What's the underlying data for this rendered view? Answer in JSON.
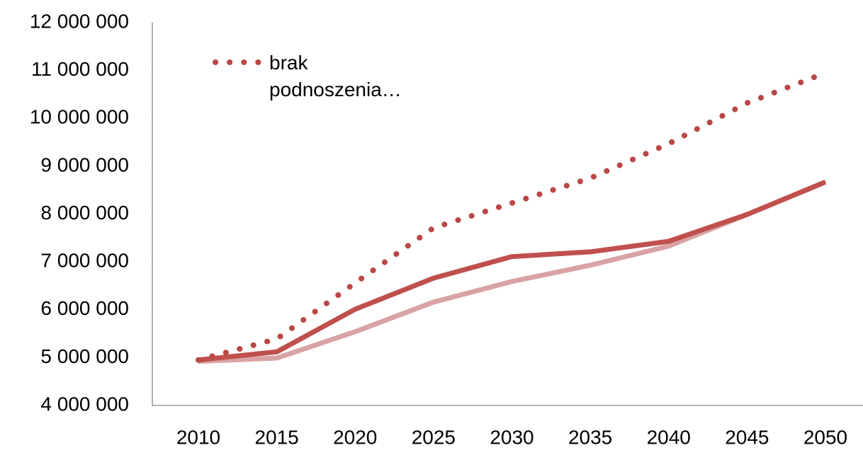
{
  "chart_data": {
    "type": "line",
    "categories": [
      "2010",
      "2015",
      "2020",
      "2025",
      "2030",
      "2035",
      "2040",
      "2045",
      "2050"
    ],
    "series": [
      {
        "name": "brak podnoszenia…",
        "color": "#b94745",
        "style": "dotted",
        "values": [
          4950000,
          5390000,
          6560000,
          7710000,
          8230000,
          8750000,
          9470000,
          10320000,
          10950000
        ]
      },
      {
        "color": "#c0504d",
        "style": "solid",
        "values": [
          4950000,
          5120000,
          6010000,
          6660000,
          7110000,
          7210000,
          7430000,
          7990000,
          8670000
        ]
      },
      {
        "color": "#d9a3a3",
        "style": "solid",
        "values": [
          4920000,
          4990000,
          5540000,
          6160000,
          6590000,
          6930000,
          7330000,
          7990000,
          8670000
        ]
      }
    ],
    "ylim": [
      4000000,
      12000000
    ],
    "yticks": [
      {
        "value": 4000000,
        "label": "4 000 000"
      },
      {
        "value": 5000000,
        "label": "5 000 000"
      },
      {
        "value": 6000000,
        "label": "6 000 000"
      },
      {
        "value": 7000000,
        "label": "7 000 000"
      },
      {
        "value": 8000000,
        "label": "8 000 000"
      },
      {
        "value": 9000000,
        "label": "9 000 000"
      },
      {
        "value": 10000000,
        "label": "10 000 000"
      },
      {
        "value": 11000000,
        "label": "11 000 000"
      },
      {
        "value": 12000000,
        "label": "12 000 000"
      }
    ],
    "grid": false,
    "legend": "top-left"
  }
}
